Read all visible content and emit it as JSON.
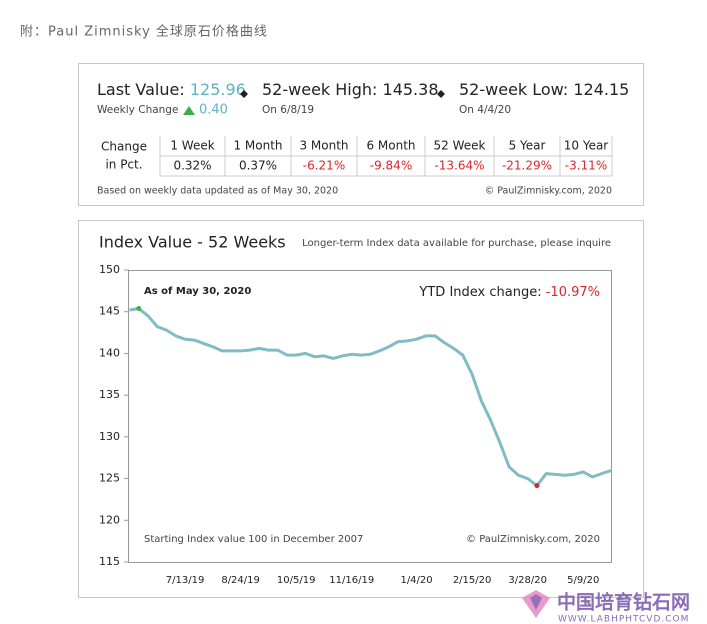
{
  "caption": "附：Paul Zimnisky 全球原石价格曲线",
  "summary": {
    "last_label": "Last Value:",
    "last_value": "125.96",
    "weekly_label": "Weekly Change",
    "weekly_value": "0.40",
    "high_label": "52-week High:",
    "high_value": "145.38",
    "high_date": "On 6/8/19",
    "low_label": "52-week Low:",
    "low_value": "124.15",
    "low_date": "On 4/4/20"
  },
  "table": {
    "row_header": [
      "Change",
      "in Pct."
    ],
    "columns": [
      "1 Week",
      "1 Month",
      "3 Month",
      "6 Month",
      "52 Week",
      "5 Year",
      "10 Year"
    ],
    "values": [
      "0.32%",
      "0.37%",
      "-6.21%",
      "-9.84%",
      "-13.64%",
      "-21.29%",
      "-3.11%"
    ]
  },
  "notes": {
    "left": "Based on weekly data updated as of May 30, 2020",
    "right": "© PaulZimnisky.com, 2020"
  },
  "chart_data": {
    "type": "line",
    "title": "Index Value - 52 Weeks",
    "subtitle": "Longer-term Index data available for purchase, please inquire",
    "annotations": {
      "as_of": "As of May 30, 2020",
      "ytd_label": "YTD Index change:",
      "ytd_value": "-10.97%",
      "start_note": "Starting Index value 100 in December 2007",
      "copyright": "© PaulZimnisky.com, 2020"
    },
    "categories": [
      null,
      null,
      null,
      null,
      null,
      null,
      "7/13/19",
      null,
      null,
      null,
      null,
      null,
      "8/24/19",
      null,
      null,
      null,
      null,
      null,
      "10/5/19",
      null,
      null,
      null,
      null,
      null,
      "11/16/19",
      null,
      null,
      null,
      null,
      null,
      null,
      "1/4/20",
      null,
      null,
      null,
      null,
      null,
      "2/15/20",
      null,
      null,
      null,
      null,
      null,
      "3/28/20",
      null,
      null,
      null,
      null,
      null,
      "5/9/20",
      null,
      null,
      null
    ],
    "values": [
      145.2,
      145.38,
      144.5,
      143.2,
      142.8,
      142.1,
      141.7,
      141.6,
      141.2,
      140.8,
      140.3,
      140.3,
      140.3,
      140.4,
      140.6,
      140.4,
      140.4,
      139.8,
      139.8,
      140.0,
      139.6,
      139.7,
      139.4,
      139.7,
      139.9,
      139.8,
      139.9,
      140.3,
      140.8,
      141.4,
      141.5,
      141.7,
      142.1,
      142.1,
      141.3,
      140.6,
      139.8,
      137.5,
      134.3,
      132.0,
      129.3,
      126.4,
      125.4,
      125.0,
      124.15,
      125.6,
      125.5,
      125.4,
      125.5,
      125.8,
      125.2,
      125.6,
      125.96
    ],
    "color": "#7fbcc6",
    "high_color": "#3fae49",
    "low_color": "#d9262a",
    "ylim": [
      115,
      150
    ],
    "yticks": [
      115,
      120,
      125,
      130,
      135,
      140,
      145,
      150
    ]
  },
  "watermark": {
    "title": "中国培育钻石网",
    "url": "WWW.LABHPHTCVD.COM"
  }
}
